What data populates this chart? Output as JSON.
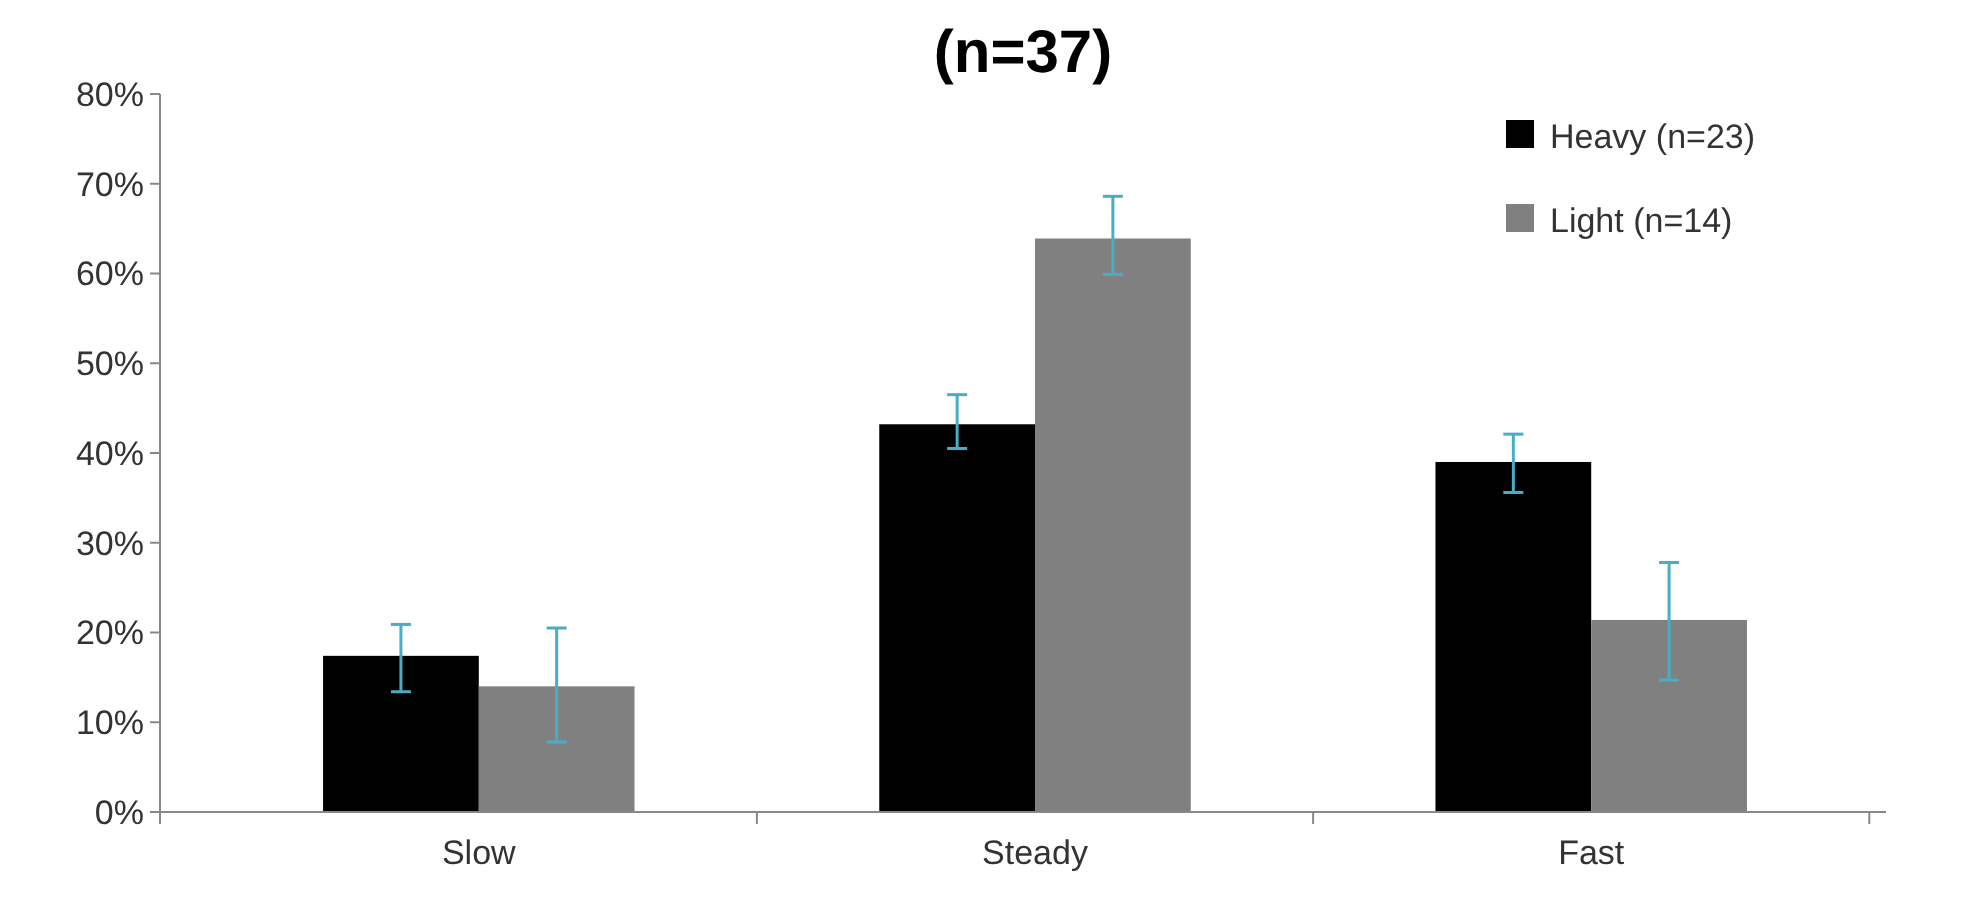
{
  "chart_data": {
    "type": "bar",
    "title": "(n=37)",
    "categories": [
      "Slow",
      "Steady",
      "Fast"
    ],
    "series": [
      {
        "name": "Heavy (n=23)",
        "color": "#000000",
        "values": [
          17.4,
          43.2,
          39.0
        ],
        "errors": [
          [
            13.4,
            20.9
          ],
          [
            40.5,
            46.5
          ],
          [
            35.6,
            42.1
          ]
        ]
      },
      {
        "name": "Light (n=14)",
        "color": "#808080",
        "values": [
          14.0,
          63.9,
          21.4
        ],
        "errors": [
          [
            7.8,
            20.5
          ],
          [
            59.9,
            68.6
          ],
          [
            14.7,
            27.8
          ]
        ]
      }
    ],
    "ylim": [
      0,
      80
    ],
    "yticks": [
      {
        "value": 0,
        "label": "0%"
      },
      {
        "value": 10,
        "label": "10%"
      },
      {
        "value": 20,
        "label": "20%"
      },
      {
        "value": 30,
        "label": "30%"
      },
      {
        "value": 40,
        "label": "40%"
      },
      {
        "value": 50,
        "label": "50%"
      },
      {
        "value": 60,
        "label": "60%"
      },
      {
        "value": 70,
        "label": "70%"
      },
      {
        "value": 80,
        "label": "80%"
      }
    ],
    "grid": false,
    "legend": "top right"
  }
}
